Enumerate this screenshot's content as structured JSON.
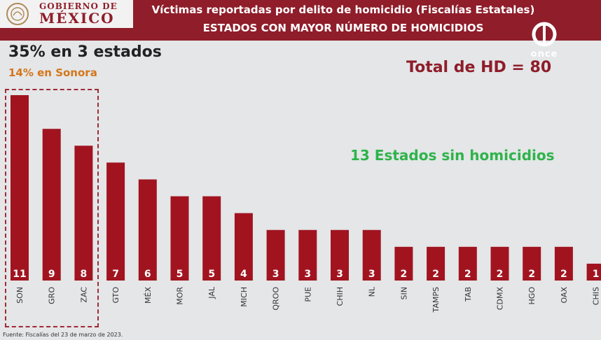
{
  "header": {
    "logo_line1": "GOBIERNO DE",
    "logo_line2": "MÉXICO",
    "title": "Víctimas reportadas por delito de homicidio (Fiscalías Estatales)",
    "subtitle": "ESTADOS CON MAYOR NÚMERO DE HOMICIDIOS",
    "channel_logo": "once"
  },
  "annotations": {
    "pct_main": "35% en 3 estados",
    "pct_sub": "14% en Sonora",
    "total": "Total de HD = 80",
    "states_without": "13 Estados sin homicidios"
  },
  "footer": {
    "source": "Fuente: Fiscalías del 23 de marzo de 2023."
  },
  "colors": {
    "header_bg": "#8f1d2a",
    "bar": "#a1141f",
    "highlight_text": "#d4761a",
    "green_text": "#2fb34a",
    "background": "#e4e6e8"
  },
  "chart_data": {
    "type": "bar",
    "categories": [
      "SON",
      "GRO",
      "ZAC",
      "GTO",
      "MÉX",
      "MOR",
      "JAL",
      "MICH",
      "QROO",
      "PUE",
      "CHIH",
      "NL",
      "SIN",
      "TAMPS",
      "TAB",
      "CDMX",
      "HGO",
      "OAX",
      "CHIS"
    ],
    "values": [
      11,
      9,
      8,
      7,
      6,
      5,
      5,
      4,
      3,
      3,
      3,
      3,
      2,
      2,
      2,
      2,
      2,
      2,
      1
    ],
    "title": "Víctimas reportadas por delito de homicidio (Fiscalías Estatales)",
    "subtitle": "ESTADOS CON MAYOR NÚMERO DE HOMICIDIOS",
    "xlabel": "",
    "ylabel": "",
    "ylim": [
      0,
      11
    ],
    "grid": false,
    "highlighted_categories": [
      "SON",
      "GRO",
      "ZAC"
    ]
  }
}
